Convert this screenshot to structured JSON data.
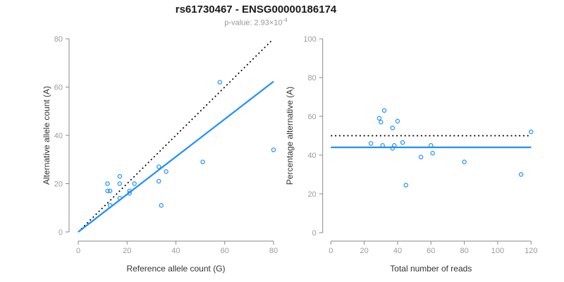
{
  "header": {
    "title": "rs61730467 - ENSG00000186174",
    "subtitle_prefix": "p-value: ",
    "subtitle_value": "2.93×10",
    "subtitle_exponent": "-4"
  },
  "colors": {
    "points": "#1E90FF",
    "fit_line": "#1E90FF",
    "identity_line": "#000000",
    "axis": "#8a8a8a",
    "tick_labels": "#9b9b9b",
    "axis_titles": "#333333"
  },
  "chart_data": [
    {
      "type": "scatter",
      "name": "allele-count-scatter",
      "title": "",
      "xlabel": "Reference allele count (G)",
      "ylabel": "Alternative allele count (A)",
      "xlim": [
        0,
        80
      ],
      "ylim": [
        0,
        80
      ],
      "xticks": [
        0,
        20,
        40,
        60,
        80
      ],
      "yticks": [
        0,
        20,
        40,
        60,
        80
      ],
      "grid": false,
      "points": [
        [
          12,
          20
        ],
        [
          17,
          23
        ],
        [
          17,
          20
        ],
        [
          23,
          20
        ],
        [
          12,
          17
        ],
        [
          13,
          17
        ],
        [
          21,
          17
        ],
        [
          21,
          16
        ],
        [
          17,
          14
        ],
        [
          13,
          11
        ],
        [
          33,
          27
        ],
        [
          36,
          25
        ],
        [
          33,
          21
        ],
        [
          34,
          11
        ],
        [
          51,
          29
        ],
        [
          58,
          62
        ],
        [
          80,
          34
        ]
      ],
      "lines": [
        {
          "name": "identity-line",
          "style": "dotted",
          "color_key": "identity_line",
          "from": [
            0,
            0
          ],
          "to": [
            79,
            79
          ]
        },
        {
          "name": "fit-line",
          "style": "solid",
          "color_key": "fit_line",
          "from": [
            0,
            0
          ],
          "to": [
            80,
            62.3
          ]
        }
      ]
    },
    {
      "type": "scatter",
      "name": "percentage-scatter",
      "title": "",
      "xlabel": "Total number of reads",
      "ylabel": "Percentage alternative (A)",
      "xlim": [
        0,
        120
      ],
      "ylim": [
        0,
        100
      ],
      "xticks": [
        0,
        20,
        40,
        60,
        80,
        100,
        120
      ],
      "yticks": [
        0,
        20,
        40,
        60,
        80,
        100
      ],
      "grid": false,
      "points": [
        [
          24,
          46
        ],
        [
          29,
          59
        ],
        [
          30,
          57
        ],
        [
          31,
          45
        ],
        [
          32,
          63
        ],
        [
          37,
          54
        ],
        [
          37,
          43.5
        ],
        [
          38,
          45
        ],
        [
          40,
          57.5
        ],
        [
          43,
          46.5
        ],
        [
          45,
          24.5
        ],
        [
          54,
          39
        ],
        [
          60,
          45
        ],
        [
          61,
          41
        ],
        [
          80,
          36.5
        ],
        [
          114,
          30
        ],
        [
          120,
          52
        ]
      ],
      "lines": [
        {
          "name": "reference-line-50pct",
          "style": "dotted",
          "color_key": "identity_line",
          "from": [
            0,
            50
          ],
          "to": [
            120,
            50
          ]
        },
        {
          "name": "fit-line",
          "style": "solid",
          "color_key": "fit_line",
          "from": [
            0,
            44
          ],
          "to": [
            120,
            44
          ]
        }
      ]
    }
  ]
}
